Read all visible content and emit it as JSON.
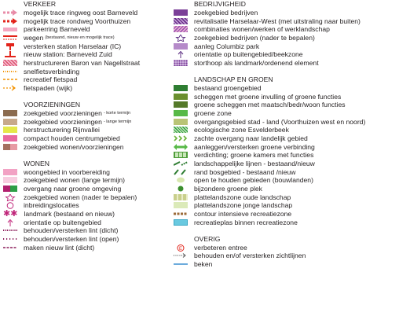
{
  "left": {
    "sections": [
      {
        "title": "VERKEER",
        "items": [
          {
            "label": "mogelijk trace ringweg oost Barneveld",
            "icon": "pink-dashed-arrow"
          },
          {
            "label": "mogelijk trace rondweg Voorthuizen",
            "icon": "red-dashed-arrow"
          },
          {
            "label": "parkeerring Barneveld",
            "icon": "pink-band"
          },
          {
            "label": "wegen",
            "small": "(bestaand, nieuw en mogelijk trace)",
            "icon": "road-symbol"
          },
          {
            "label": "versterken station Harselaar (IC)",
            "icon": "station-icon"
          },
          {
            "label": "nieuw station: Barneveld Zuid",
            "icon": "station-line-icon"
          },
          {
            "label": "herstructureren Baron van Nagellstraat",
            "icon": "hatched-pink"
          },
          {
            "label": "snelfietsverbinding",
            "icon": "orange-dotted"
          },
          {
            "label": "recreatief fietspad",
            "icon": "orange-dashed"
          },
          {
            "label": "fietspaden (wijk)",
            "icon": "orange-dash-arrow"
          }
        ]
      },
      {
        "title": "VOORZIENINGEN",
        "items": [
          {
            "label": "zoekgebied voorzieningen",
            "small": "- korte termijn",
            "icon": "brown-swatch"
          },
          {
            "label": "zoekgebied voorzieningen",
            "small": "- lange termijn",
            "icon": "tan-swatch"
          },
          {
            "label": "herstructurering Rijnvallei",
            "icon": "yellowgreen-swatch"
          },
          {
            "label": "compact houden centrumgebied",
            "icon": "pink-magenta-swatch"
          },
          {
            "label": "zoekgebied wonen/voorzieningen",
            "icon": "brown-pink-swatch"
          }
        ]
      },
      {
        "title": "WONEN",
        "items": [
          {
            "label": "woongebied in voorbereiding",
            "icon": "pink-swatch"
          },
          {
            "label": "zoekgebied wonen (lange termijn)",
            "icon": "light-pink-swatch"
          },
          {
            "label": "overgang naar groene omgeving",
            "icon": "magenta-green-swatch"
          },
          {
            "label": "zoekgebied wonen (nader te bepalen)",
            "icon": "star-icon"
          },
          {
            "label": "inbreidingslocaties",
            "icon": "circle-outline-icon"
          },
          {
            "label": "landmark (bestaand en nieuw)",
            "icon": "asterisk-icon"
          },
          {
            "label": "orientatie op buitengebied",
            "icon": "arrow-up-icon"
          },
          {
            "label": "behouden/versterken lint (dicht)",
            "icon": "dotted-line-dense"
          },
          {
            "label": "behouden/versterken lint (open)",
            "icon": "dotted-line-open"
          },
          {
            "label": "maken nieuw lint (dicht)",
            "icon": "dashed-line-purple"
          }
        ]
      }
    ]
  },
  "right": {
    "sections": [
      {
        "title": "BEDRIJVIGHEID",
        "items": [
          {
            "label": "zoekgebied bedrijven",
            "icon": "purple-swatch"
          },
          {
            "label": "revitalisatie Harselaar-West (met uitstraling naar buiten)",
            "icon": "purple-hatch"
          },
          {
            "label": "combinaties wonen/werken of werklandschap",
            "icon": "pink-purple-hatch"
          },
          {
            "label": "zoekgebied bedrijven (nader te bepalen)",
            "icon": "star-outline-purple"
          },
          {
            "label": "aanleg Columbiz park",
            "icon": "lilac-swatch"
          },
          {
            "label": "orientatie op buitengebied/beekzone",
            "icon": "arrow-up-purple"
          },
          {
            "label": "storthoop als landmark/ordenend element",
            "icon": "lilac-dots-swatch"
          }
        ]
      },
      {
        "title": "LANDSCHAP EN GROEN",
        "items": [
          {
            "label": "bestaand groengebied",
            "icon": "darkgreen-swatch"
          },
          {
            "label": "scheggen met groene invulling of groene functies",
            "icon": "olive-swatch"
          },
          {
            "label": "groene scheggen met maatsch/bedr/woon functies",
            "icon": "olive-dark-swatch"
          },
          {
            "label": "groene zone",
            "icon": "green-swatch"
          },
          {
            "label": "overgangsgebied stad - land (Voorthuizen west en noord)",
            "icon": "khaki-swatch"
          },
          {
            "label": "ecologische zone Esvelderbeek",
            "icon": "green-hatch"
          },
          {
            "label": "zachte overgang naar landelijk gebied",
            "icon": "green-arrows"
          },
          {
            "label": "aanleggen/versterken groene verbinding",
            "icon": "double-arrow-green"
          },
          {
            "label": "verdichting; groene kamers met functies",
            "icon": "green-grid"
          },
          {
            "label": "landschappelijke lijnen - bestaand/nieuw",
            "icon": "green-dash-lines"
          },
          {
            "label": "rand bosgebied - bestaand /nieuw",
            "icon": "green-slashes"
          },
          {
            "label": "open te houden gebieden (bouwlanden)",
            "icon": "pale-green-ellipse"
          },
          {
            "label": "bijzondere groene plek",
            "icon": "green-dot"
          },
          {
            "label": "plattelandszone oude landschap",
            "icon": "dashed-olive"
          },
          {
            "label": "plattelandszone jonge landschap",
            "icon": "pale-green-swatch"
          },
          {
            "label": "contour intensieve recreatiezone",
            "icon": "brown-dashed"
          },
          {
            "label": "recreatieplas binnen recreatiezone",
            "icon": "cyan-swatch"
          }
        ]
      },
      {
        "title": "OVERIG",
        "items": [
          {
            "label": "verbeteren entree",
            "icon": "circle-e-icon"
          },
          {
            "label": "behouden en/of versterken zichtlijnen",
            "icon": "dotted-arrow-icon"
          },
          {
            "label": "beken",
            "icon": "blue-line"
          }
        ]
      }
    ]
  }
}
